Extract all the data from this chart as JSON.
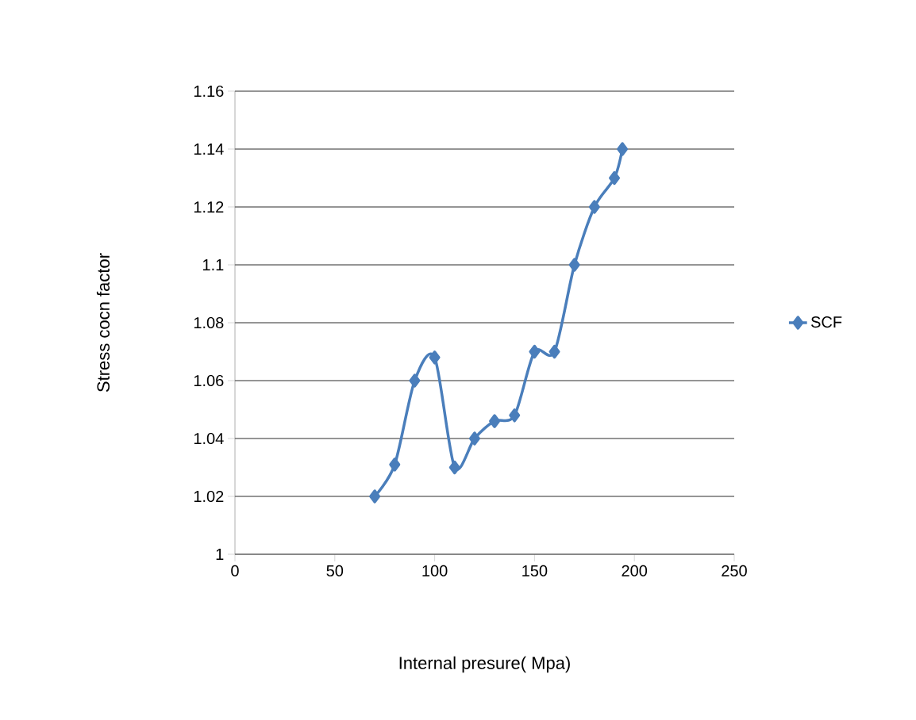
{
  "chart_data": {
    "type": "line",
    "xlabel": "Internal presure( Mpa)",
    "ylabel": "Stress  cocn factor",
    "x": [
      70,
      80,
      90,
      100,
      110,
      120,
      130,
      140,
      150,
      160,
      170,
      180,
      190,
      194
    ],
    "series": [
      {
        "name": "SCF",
        "color": "#4a7ebb",
        "values": [
          1.02,
          1.031,
          1.06,
          1.068,
          1.03,
          1.04,
          1.046,
          1.048,
          1.07,
          1.07,
          1.1,
          1.12,
          1.13,
          1.14
        ]
      }
    ],
    "xlim": [
      0,
      250
    ],
    "ylim": [
      1,
      1.16
    ],
    "xticks": [
      0,
      50,
      100,
      150,
      200,
      250
    ],
    "yticks": [
      1,
      1.02,
      1.04,
      1.06,
      1.08,
      1.1,
      1.12,
      1.14,
      1.16
    ],
    "grid": "y",
    "legend": "right",
    "marker": "diamond",
    "line_style": "solid"
  }
}
